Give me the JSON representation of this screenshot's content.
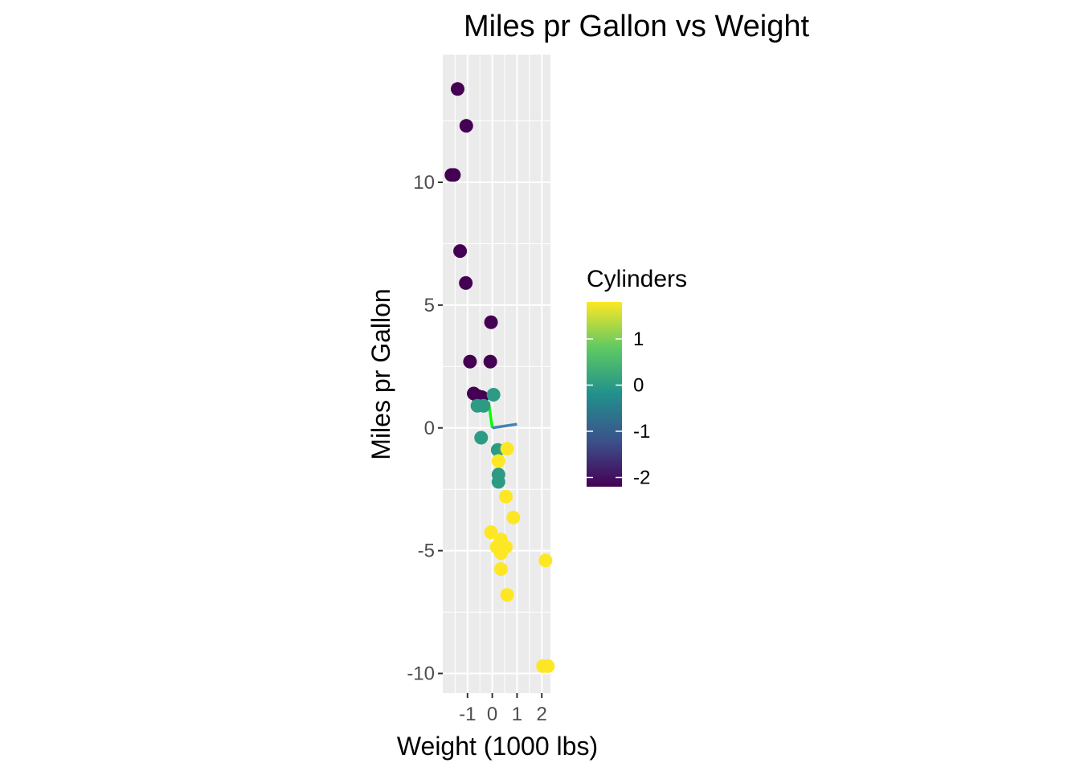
{
  "chart_data": {
    "type": "scatter",
    "title": "Miles pr Gallon vs Weight",
    "xlabel": "Weight (1000 lbs)",
    "ylabel": "Miles pr Gallon",
    "xlim": [
      -2.0,
      2.35
    ],
    "ylim": [
      -10.8,
      15.2
    ],
    "x_ticks": [
      -1,
      0,
      1,
      2
    ],
    "y_ticks": [
      -10,
      -5,
      0,
      5,
      10
    ],
    "x_tick_labels": [
      "-1",
      "0",
      "1",
      "2"
    ],
    "y_tick_labels": [
      "-10",
      "-5",
      "0",
      "5",
      "10"
    ],
    "grid": true,
    "panel_background": "#ebebeb",
    "legend": {
      "title": "Cylinders",
      "placement": "right",
      "type": "colorbar",
      "range": [
        -2.2,
        1.8
      ],
      "breaks": [
        1,
        0,
        -1,
        -2
      ],
      "break_labels": [
        "1",
        "0",
        "-1",
        "-2"
      ],
      "colors": [
        "#440154",
        "#3b528b",
        "#21908c",
        "#5dc963",
        "#fde725"
      ]
    },
    "points": [
      {
        "x": -1.4,
        "y": 13.8,
        "cyl": -2.2
      },
      {
        "x": -1.05,
        "y": 12.3,
        "cyl": -2.2
      },
      {
        "x": -1.65,
        "y": 10.3,
        "cyl": -2.2
      },
      {
        "x": -1.55,
        "y": 10.3,
        "cyl": -2.2
      },
      {
        "x": -1.3,
        "y": 7.2,
        "cyl": -2.2
      },
      {
        "x": -1.07,
        "y": 5.9,
        "cyl": -2.2
      },
      {
        "x": -0.05,
        "y": 4.3,
        "cyl": -2.2
      },
      {
        "x": -0.9,
        "y": 2.7,
        "cyl": -2.2
      },
      {
        "x": -0.08,
        "y": 2.7,
        "cyl": -2.2
      },
      {
        "x": -0.75,
        "y": 1.4,
        "cyl": -2.2
      },
      {
        "x": -0.6,
        "y": 1.3,
        "cyl": -2.2
      },
      {
        "x": -0.42,
        "y": 1.25,
        "cyl": -2.2
      },
      {
        "x": 0.05,
        "y": 1.35,
        "cyl": 0.0
      },
      {
        "x": -0.6,
        "y": 0.9,
        "cyl": 0.0
      },
      {
        "x": -0.35,
        "y": 0.9,
        "cyl": 0.0
      },
      {
        "x": -0.45,
        "y": -0.4,
        "cyl": 0.0
      },
      {
        "x": 0.22,
        "y": -0.9,
        "cyl": 0.0
      },
      {
        "x": 0.25,
        "y": -1.9,
        "cyl": 0.0
      },
      {
        "x": 0.25,
        "y": -2.2,
        "cyl": 0.0
      },
      {
        "x": 0.6,
        "y": -0.85,
        "cyl": 1.8
      },
      {
        "x": 0.25,
        "y": -1.35,
        "cyl": 1.8
      },
      {
        "x": 0.55,
        "y": -2.8,
        "cyl": 1.8
      },
      {
        "x": 0.85,
        "y": -3.65,
        "cyl": 1.8
      },
      {
        "x": -0.05,
        "y": -4.25,
        "cyl": 1.8
      },
      {
        "x": 0.35,
        "y": -4.55,
        "cyl": 1.8
      },
      {
        "x": 0.18,
        "y": -4.85,
        "cyl": 1.8
      },
      {
        "x": 0.55,
        "y": -4.85,
        "cyl": 1.8
      },
      {
        "x": 0.35,
        "y": -5.1,
        "cyl": 1.8
      },
      {
        "x": 2.15,
        "y": -5.4,
        "cyl": 1.8
      },
      {
        "x": 0.35,
        "y": -5.75,
        "cyl": 1.8
      },
      {
        "x": 0.6,
        "y": -6.8,
        "cyl": 1.8
      },
      {
        "x": 2.05,
        "y": -9.7,
        "cyl": 1.8
      },
      {
        "x": 2.25,
        "y": -9.7,
        "cyl": 1.8
      }
    ],
    "segments": [
      {
        "x1": 0.0,
        "y1": 0.0,
        "x2": -0.15,
        "y2": 1.05,
        "color": "#00ff00"
      },
      {
        "x1": 0.0,
        "y1": 0.0,
        "x2": 1.0,
        "y2": 0.15,
        "color": "#4682b4"
      }
    ]
  }
}
